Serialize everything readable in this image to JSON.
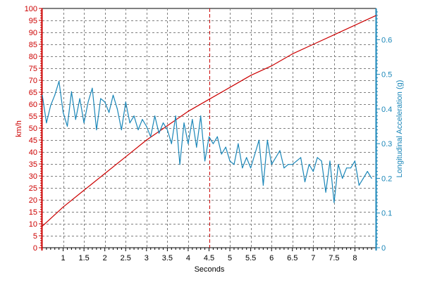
{
  "chart_data": {
    "type": "line",
    "xlabel": "Seconds",
    "y_left_label": "km/h",
    "y_right_label": "Longitudinal Acceleration (g)",
    "xlim": [
      0.5,
      8.5
    ],
    "ylim_left": [
      0,
      100
    ],
    "ylim_right": [
      0,
      0.69
    ],
    "x_ticks": [
      1,
      1.5,
      2,
      2.5,
      3,
      3.5,
      4,
      4.5,
      5,
      5.5,
      6,
      6.5,
      7,
      7.5,
      8
    ],
    "y_left_ticks": [
      0,
      5,
      10,
      15,
      20,
      25,
      30,
      35,
      40,
      45,
      50,
      55,
      60,
      65,
      70,
      75,
      80,
      85,
      90,
      95,
      100
    ],
    "y_right_ticks": [
      0,
      0.1,
      0.2,
      0.3,
      0.4,
      0.5,
      0.6
    ],
    "grid": true,
    "marker_x": 4.5,
    "colors": {
      "speed": "#cc0000",
      "accel": "#1a86b8",
      "marker": "#cc0000",
      "grid": "#808080",
      "axis_text": "#000000"
    },
    "series": [
      {
        "axis": "left",
        "color": "#cc0000",
        "x": [
          0.5,
          1.0,
          1.5,
          2.0,
          2.5,
          3.0,
          3.5,
          4.0,
          4.5,
          5.0,
          5.5,
          6.0,
          6.5,
          7.0,
          7.5,
          8.0,
          8.5
        ],
        "y": [
          9,
          17,
          24,
          31,
          38,
          45,
          51,
          57,
          62,
          67,
          72,
          76,
          81,
          85,
          89,
          93,
          97
        ]
      },
      {
        "axis": "right",
        "color": "#1a86b8",
        "x": [
          0.5,
          0.6,
          0.7,
          0.8,
          0.9,
          1.0,
          1.1,
          1.2,
          1.3,
          1.4,
          1.5,
          1.6,
          1.7,
          1.8,
          1.9,
          2.0,
          2.1,
          2.2,
          2.3,
          2.4,
          2.5,
          2.6,
          2.7,
          2.8,
          2.9,
          3.0,
          3.1,
          3.2,
          3.3,
          3.4,
          3.5,
          3.6,
          3.7,
          3.8,
          3.9,
          4.0,
          4.1,
          4.2,
          4.3,
          4.4,
          4.5,
          4.6,
          4.7,
          4.8,
          4.9,
          5.0,
          5.1,
          5.2,
          5.3,
          5.4,
          5.5,
          5.6,
          5.7,
          5.8,
          5.9,
          6.0,
          6.1,
          6.2,
          6.3,
          6.4,
          6.5,
          6.6,
          6.7,
          6.8,
          6.9,
          7.0,
          7.1,
          7.2,
          7.3,
          7.4,
          7.5,
          7.6,
          7.7,
          7.8,
          7.9,
          8.0,
          8.1,
          8.2,
          8.3,
          8.4
        ],
        "y": [
          0.44,
          0.36,
          0.41,
          0.44,
          0.48,
          0.39,
          0.35,
          0.45,
          0.37,
          0.43,
          0.36,
          0.42,
          0.46,
          0.34,
          0.43,
          0.42,
          0.39,
          0.44,
          0.4,
          0.34,
          0.42,
          0.36,
          0.38,
          0.34,
          0.37,
          0.35,
          0.32,
          0.38,
          0.33,
          0.36,
          0.34,
          0.3,
          0.38,
          0.24,
          0.36,
          0.3,
          0.37,
          0.29,
          0.38,
          0.25,
          0.32,
          0.3,
          0.32,
          0.27,
          0.29,
          0.25,
          0.24,
          0.3,
          0.23,
          0.26,
          0.23,
          0.27,
          0.31,
          0.18,
          0.31,
          0.24,
          0.26,
          0.28,
          0.23,
          0.24,
          0.24,
          0.25,
          0.26,
          0.19,
          0.24,
          0.22,
          0.26,
          0.25,
          0.16,
          0.25,
          0.13,
          0.24,
          0.2,
          0.23,
          0.23,
          0.25,
          0.18,
          0.2,
          0.22,
          0.2
        ]
      }
    ]
  }
}
